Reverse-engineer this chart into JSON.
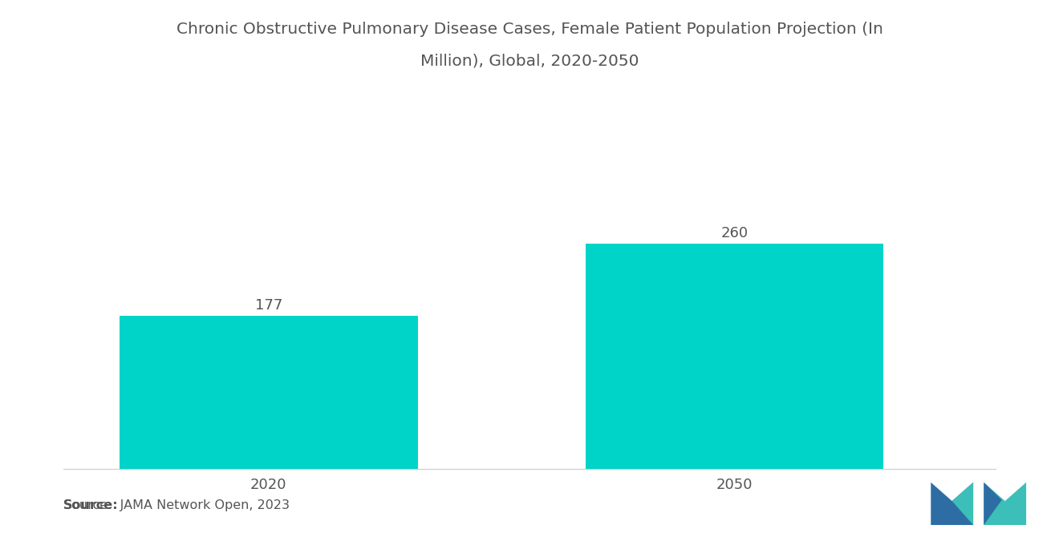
{
  "title_line1": "Chronic Obstructive Pulmonary Disease Cases, Female Patient Population Projection (In",
  "title_line2": "Million), Global, 2020-2050",
  "categories": [
    "2020",
    "2050"
  ],
  "values": [
    177,
    260
  ],
  "bar_color": "#00D4C8",
  "bar_width": 0.32,
  "value_labels": [
    "177",
    "260"
  ],
  "source_bold": "Source:",
  "source_normal": "  JAMA Network Open, 2023",
  "title_fontsize": 14.5,
  "label_fontsize": 13,
  "source_fontsize": 11.5,
  "value_fontsize": 13,
  "background_color": "#ffffff",
  "text_color": "#555555",
  "ylim": [
    0,
    320
  ],
  "xlim": [
    0,
    1
  ],
  "x_positions": [
    0.22,
    0.72
  ],
  "logo_blue": "#2E6DA4",
  "logo_teal": "#3CBFB8"
}
